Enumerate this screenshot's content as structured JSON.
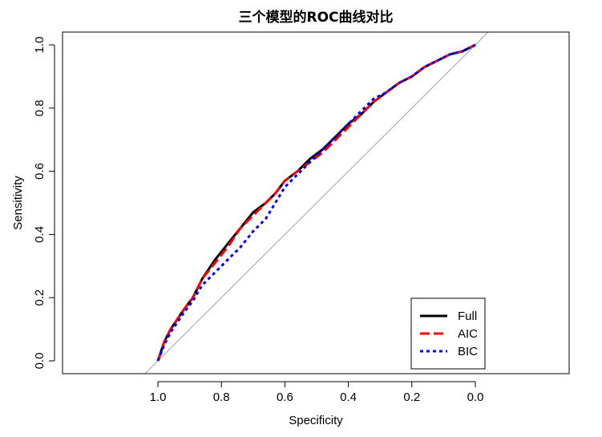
{
  "chart_data": {
    "type": "line",
    "title": "三个模型的ROC曲线对比",
    "xlabel": "Specificity",
    "ylabel": "Sensitivity",
    "x_axis_reversed": true,
    "xlim": [
      1.0,
      0.0
    ],
    "ylim": [
      0.0,
      1.0
    ],
    "x_ticks": [
      "1.0",
      "0.8",
      "0.6",
      "0.4",
      "0.2",
      "0.0"
    ],
    "y_ticks": [
      "0.0",
      "0.2",
      "0.4",
      "0.6",
      "0.8",
      "1.0"
    ],
    "grid": false,
    "legend_position": "bottom-right",
    "reference_line": {
      "description": "diagonal y = 1 - x",
      "color": "#a0a0a0"
    },
    "series": [
      {
        "name": "Full",
        "color": "#000000",
        "style": "solid",
        "x": [
          1.0,
          0.98,
          0.96,
          0.94,
          0.92,
          0.89,
          0.86,
          0.82,
          0.78,
          0.74,
          0.7,
          0.66,
          0.63,
          0.6,
          0.56,
          0.52,
          0.48,
          0.44,
          0.4,
          0.36,
          0.32,
          0.28,
          0.24,
          0.2,
          0.16,
          0.12,
          0.08,
          0.04,
          0.02,
          0.0
        ],
        "y": [
          0.0,
          0.06,
          0.1,
          0.13,
          0.16,
          0.2,
          0.26,
          0.32,
          0.37,
          0.42,
          0.47,
          0.5,
          0.53,
          0.57,
          0.6,
          0.64,
          0.67,
          0.71,
          0.75,
          0.78,
          0.82,
          0.85,
          0.88,
          0.9,
          0.93,
          0.95,
          0.97,
          0.98,
          0.99,
          1.0
        ]
      },
      {
        "name": "AIC",
        "color": "#ff0000",
        "style": "dashed",
        "x": [
          1.0,
          0.98,
          0.96,
          0.94,
          0.92,
          0.89,
          0.86,
          0.82,
          0.78,
          0.74,
          0.7,
          0.66,
          0.63,
          0.6,
          0.56,
          0.52,
          0.48,
          0.44,
          0.4,
          0.36,
          0.32,
          0.28,
          0.24,
          0.2,
          0.16,
          0.12,
          0.08,
          0.04,
          0.02,
          0.0
        ],
        "y": [
          0.0,
          0.06,
          0.1,
          0.13,
          0.16,
          0.2,
          0.26,
          0.31,
          0.36,
          0.42,
          0.46,
          0.5,
          0.53,
          0.57,
          0.6,
          0.63,
          0.66,
          0.7,
          0.74,
          0.78,
          0.82,
          0.85,
          0.88,
          0.9,
          0.93,
          0.95,
          0.97,
          0.98,
          0.99,
          1.0
        ]
      },
      {
        "name": "BIC",
        "color": "#0000ff",
        "style": "dotted",
        "x": [
          1.0,
          0.98,
          0.96,
          0.94,
          0.92,
          0.89,
          0.86,
          0.82,
          0.78,
          0.74,
          0.7,
          0.66,
          0.63,
          0.6,
          0.56,
          0.52,
          0.48,
          0.44,
          0.4,
          0.36,
          0.32,
          0.28,
          0.24,
          0.2,
          0.16,
          0.12,
          0.08,
          0.04,
          0.02,
          0.0
        ],
        "y": [
          0.0,
          0.05,
          0.09,
          0.12,
          0.15,
          0.19,
          0.24,
          0.28,
          0.32,
          0.36,
          0.41,
          0.45,
          0.5,
          0.55,
          0.59,
          0.63,
          0.67,
          0.71,
          0.75,
          0.79,
          0.83,
          0.85,
          0.88,
          0.9,
          0.93,
          0.95,
          0.97,
          0.98,
          0.99,
          1.0
        ]
      }
    ]
  }
}
